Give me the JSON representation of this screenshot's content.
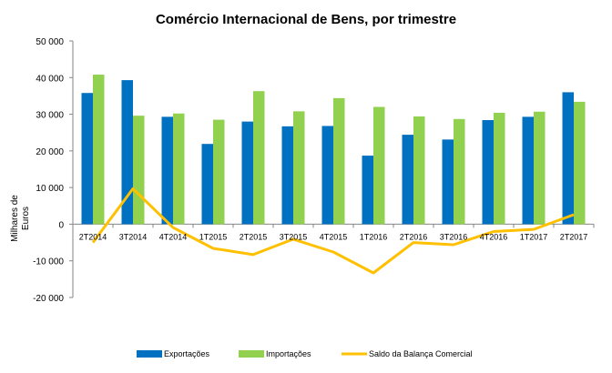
{
  "chart_data": {
    "type": "bar",
    "title": "Comércio Internacional de Bens, por trimestre",
    "ylabel_line1": "Milhares de",
    "ylabel_line2": "Euros",
    "xlabel": "",
    "ylim": [
      -20000,
      50000
    ],
    "yticks": [
      50000,
      40000,
      30000,
      20000,
      10000,
      0,
      -10000,
      -20000
    ],
    "ytick_labels": [
      "50 000",
      "40 000",
      "30 000",
      "20 000",
      "10 000",
      "0",
      "-10 000",
      "-20 000"
    ],
    "categories": [
      "2T2014",
      "3T2014",
      "4T2014",
      "1T2015",
      "2T2015",
      "3T2015",
      "4T2015",
      "1T2016",
      "2T2016",
      "3T2016",
      "4T2016",
      "1T2017",
      "2T2017"
    ],
    "series": [
      {
        "name": "Exportações",
        "type": "bar",
        "color": "#0070c0",
        "values": [
          35800,
          39300,
          29300,
          21900,
          28000,
          26700,
          26800,
          18700,
          24400,
          23100,
          28400,
          29300,
          36000
        ]
      },
      {
        "name": "Importações",
        "type": "bar",
        "color": "#92d050",
        "values": [
          40800,
          29600,
          30200,
          28500,
          36300,
          30800,
          34400,
          32000,
          29400,
          28700,
          30400,
          30700,
          33400
        ]
      },
      {
        "name": "Saldo da Balança Comercial",
        "type": "line",
        "color": "#ffc000",
        "values": [
          -5000,
          9700,
          -900,
          -6600,
          -8300,
          -4100,
          -7600,
          -13300,
          -5000,
          -5600,
          -2000,
          -1400,
          2600
        ]
      }
    ],
    "legend_position": "bottom",
    "grid": false
  }
}
